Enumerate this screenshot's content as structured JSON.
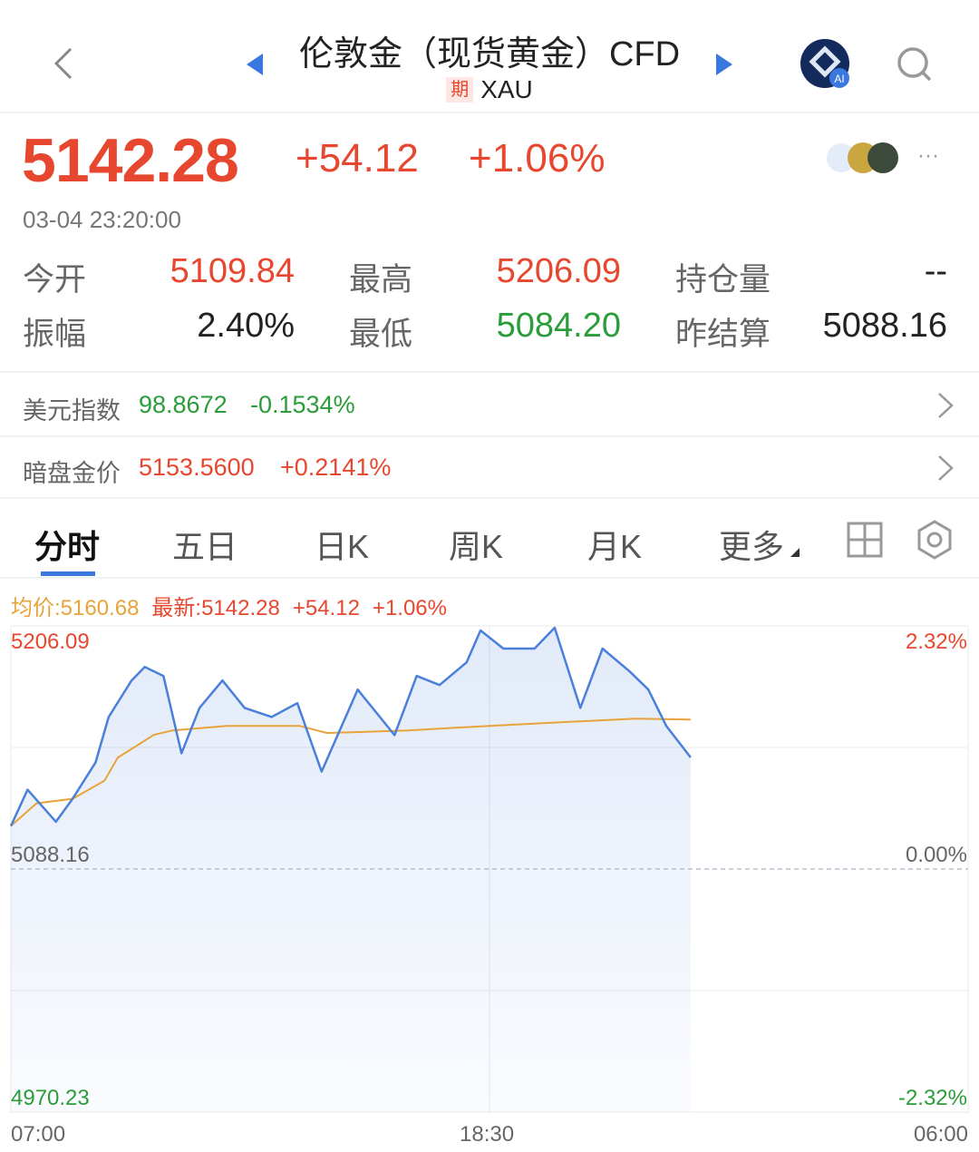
{
  "header": {
    "title": "伦敦金（现货黄金）CFD",
    "badge": "期",
    "symbol": "XAU",
    "icons": [
      "back-chevron-icon",
      "prev-triangle-icon",
      "next-triangle-icon",
      "ai-assistant-icon",
      "search-icon"
    ]
  },
  "quote": {
    "price": "5142.28",
    "change": "+54.12",
    "change_pct": "+1.06%",
    "timestamp": "03-04 23:20:00",
    "more": "···"
  },
  "stats": [
    {
      "label": "今开",
      "value": "5109.84",
      "color": "red"
    },
    {
      "label": "最高",
      "value": "5206.09",
      "color": "red"
    },
    {
      "label": "持仓量",
      "value": "--",
      "color": "black"
    },
    {
      "label": "振幅",
      "value": "2.40%",
      "color": "black"
    },
    {
      "label": "最低",
      "value": "5084.20",
      "color": "green"
    },
    {
      "label": "昨结算",
      "value": "5088.16",
      "color": "black"
    }
  ],
  "related": [
    {
      "label": "美元指数",
      "value": "98.8672",
      "change": "-0.1534%",
      "color": "green"
    },
    {
      "label": "暗盘金价",
      "value": "5153.5600",
      "change": "+0.2141%",
      "color": "red"
    }
  ],
  "tabs": [
    {
      "label": "分时",
      "active": true
    },
    {
      "label": "五日"
    },
    {
      "label": "日K"
    },
    {
      "label": "周K"
    },
    {
      "label": "月K"
    },
    {
      "label": "更多"
    }
  ],
  "legend": {
    "avg": "均价:5160.68",
    "latest": "最新:5142.28",
    "change": "+54.12",
    "change_pct": "+1.06%"
  },
  "colors": {
    "up": "#e8472f",
    "down": "#2a9d3a",
    "price_line": "#4a7fdb",
    "avg_line": "#e8a33a",
    "accent": "#3a78e0"
  },
  "chart_data": {
    "type": "line",
    "ylim": [
      4970.23,
      5206.09
    ],
    "base": 5088.16,
    "y_ticks_left": [
      "5206.09",
      "5088.16",
      "4970.23"
    ],
    "y_ticks_right": [
      "2.32%",
      "0.00%",
      "-2.32%"
    ],
    "x_ticks": [
      "07:00",
      "18:30",
      "06:00"
    ],
    "x_range": [
      "07:00",
      "06:00"
    ],
    "series": [
      {
        "key": "price",
        "points": [
          [
            "07:00",
            5109.0
          ],
          [
            "07:24",
            5126.6
          ],
          [
            "08:05",
            5111.1
          ],
          [
            "08:29",
            5122.2
          ],
          [
            "09:02",
            5139.8
          ],
          [
            "09:21",
            5161.9
          ],
          [
            "09:54",
            5179.6
          ],
          [
            "10:13",
            5186.2
          ],
          [
            "10:40",
            5181.8
          ],
          [
            "11:06",
            5144.3
          ],
          [
            "11:32",
            5166.3
          ],
          [
            "12:05",
            5179.6
          ],
          [
            "12:37",
            5166.3
          ],
          [
            "13:16",
            5161.9
          ],
          [
            "13:53",
            5168.6
          ],
          [
            "14:28",
            5135.4
          ],
          [
            "14:54",
            5155.3
          ],
          [
            "15:20",
            5175.2
          ],
          [
            "16:13",
            5153.1
          ],
          [
            "16:45",
            5181.8
          ],
          [
            "17:18",
            5177.4
          ],
          [
            "17:57",
            5188.4
          ],
          [
            "18:17",
            5203.9
          ],
          [
            "18:50",
            5195.1
          ],
          [
            "19:35",
            5195.1
          ],
          [
            "20:04",
            5205.2
          ],
          [
            "20:41",
            5166.3
          ],
          [
            "21:13",
            5195.1
          ],
          [
            "21:52",
            5184.0
          ],
          [
            "22:19",
            5175.2
          ],
          [
            "22:45",
            5157.5
          ],
          [
            "23:20",
            5142.28
          ]
        ]
      },
      {
        "key": "avg",
        "points": [
          [
            "07:00",
            5109.0
          ],
          [
            "07:37",
            5120.0
          ],
          [
            "08:29",
            5122.2
          ],
          [
            "09:15",
            5131.0
          ],
          [
            "09:34",
            5142.1
          ],
          [
            "10:26",
            5153.2
          ],
          [
            "10:53",
            5155.4
          ],
          [
            "12:12",
            5157.6
          ],
          [
            "13:56",
            5157.6
          ],
          [
            "14:36",
            5154.1
          ],
          [
            "16:33",
            5155.4
          ],
          [
            "18:30",
            5157.6
          ],
          [
            "20:41",
            5159.8
          ],
          [
            "22:00",
            5161.1
          ],
          [
            "23:20",
            5160.68
          ]
        ]
      }
    ]
  }
}
